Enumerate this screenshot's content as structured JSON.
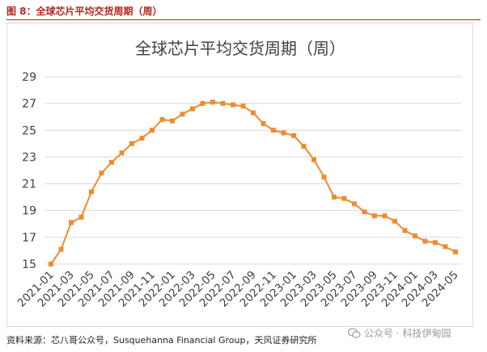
{
  "figure": {
    "caption": "图 8：全球芯片平均交货周期（周）",
    "source": "资料来源：芯八哥公众号，Susquehanna Financial Group，天风证券研究所",
    "watermark": "公众号 · 科技伊甸园",
    "accent_color": "#b3261e"
  },
  "chart_data": {
    "type": "line",
    "title": "全球芯片平均交货周期（周）",
    "xlabel": "",
    "ylabel": "",
    "ylim": [
      15,
      29
    ],
    "yticks": [
      15,
      17,
      19,
      21,
      23,
      25,
      27,
      29
    ],
    "grid": true,
    "legend": "none",
    "line_color": "#ed8b2f",
    "x_tick_labels": [
      "2021-01",
      "2021-03",
      "2021-05",
      "2021-07",
      "2021-09",
      "2021-11",
      "2022-01",
      "2022-03",
      "2022-05",
      "2022-07",
      "2022-09",
      "2022-11",
      "2023-01",
      "2023-03",
      "2023-05",
      "2023-07",
      "2023-09",
      "2023-11",
      "2024-01",
      "2024-03",
      "2024-05"
    ],
    "x": [
      "2021-01",
      "2021-02",
      "2021-03",
      "2021-04",
      "2021-05",
      "2021-06",
      "2021-07",
      "2021-08",
      "2021-09",
      "2021-10",
      "2021-11",
      "2021-12",
      "2022-01",
      "2022-02",
      "2022-03",
      "2022-04",
      "2022-05",
      "2022-06",
      "2022-07",
      "2022-08",
      "2022-09",
      "2022-10",
      "2022-11",
      "2022-12",
      "2023-01",
      "2023-02",
      "2023-03",
      "2023-04",
      "2023-05",
      "2023-06",
      "2023-07",
      "2023-08",
      "2023-09",
      "2023-10",
      "2023-11",
      "2023-12",
      "2024-01",
      "2024-02",
      "2024-03",
      "2024-04",
      "2024-05"
    ],
    "series": [
      {
        "values": [
          15.0,
          16.1,
          18.1,
          18.5,
          20.4,
          21.8,
          22.6,
          23.3,
          24.0,
          24.4,
          25.0,
          25.8,
          25.7,
          26.2,
          26.6,
          27.0,
          27.1,
          27.0,
          26.9,
          26.8,
          26.3,
          25.5,
          25.0,
          24.8,
          24.6,
          23.8,
          22.8,
          21.5,
          20.0,
          19.9,
          19.5,
          18.9,
          18.6,
          18.6,
          18.2,
          17.5,
          17.1,
          16.7,
          16.6,
          16.3,
          15.9
        ]
      }
    ]
  }
}
